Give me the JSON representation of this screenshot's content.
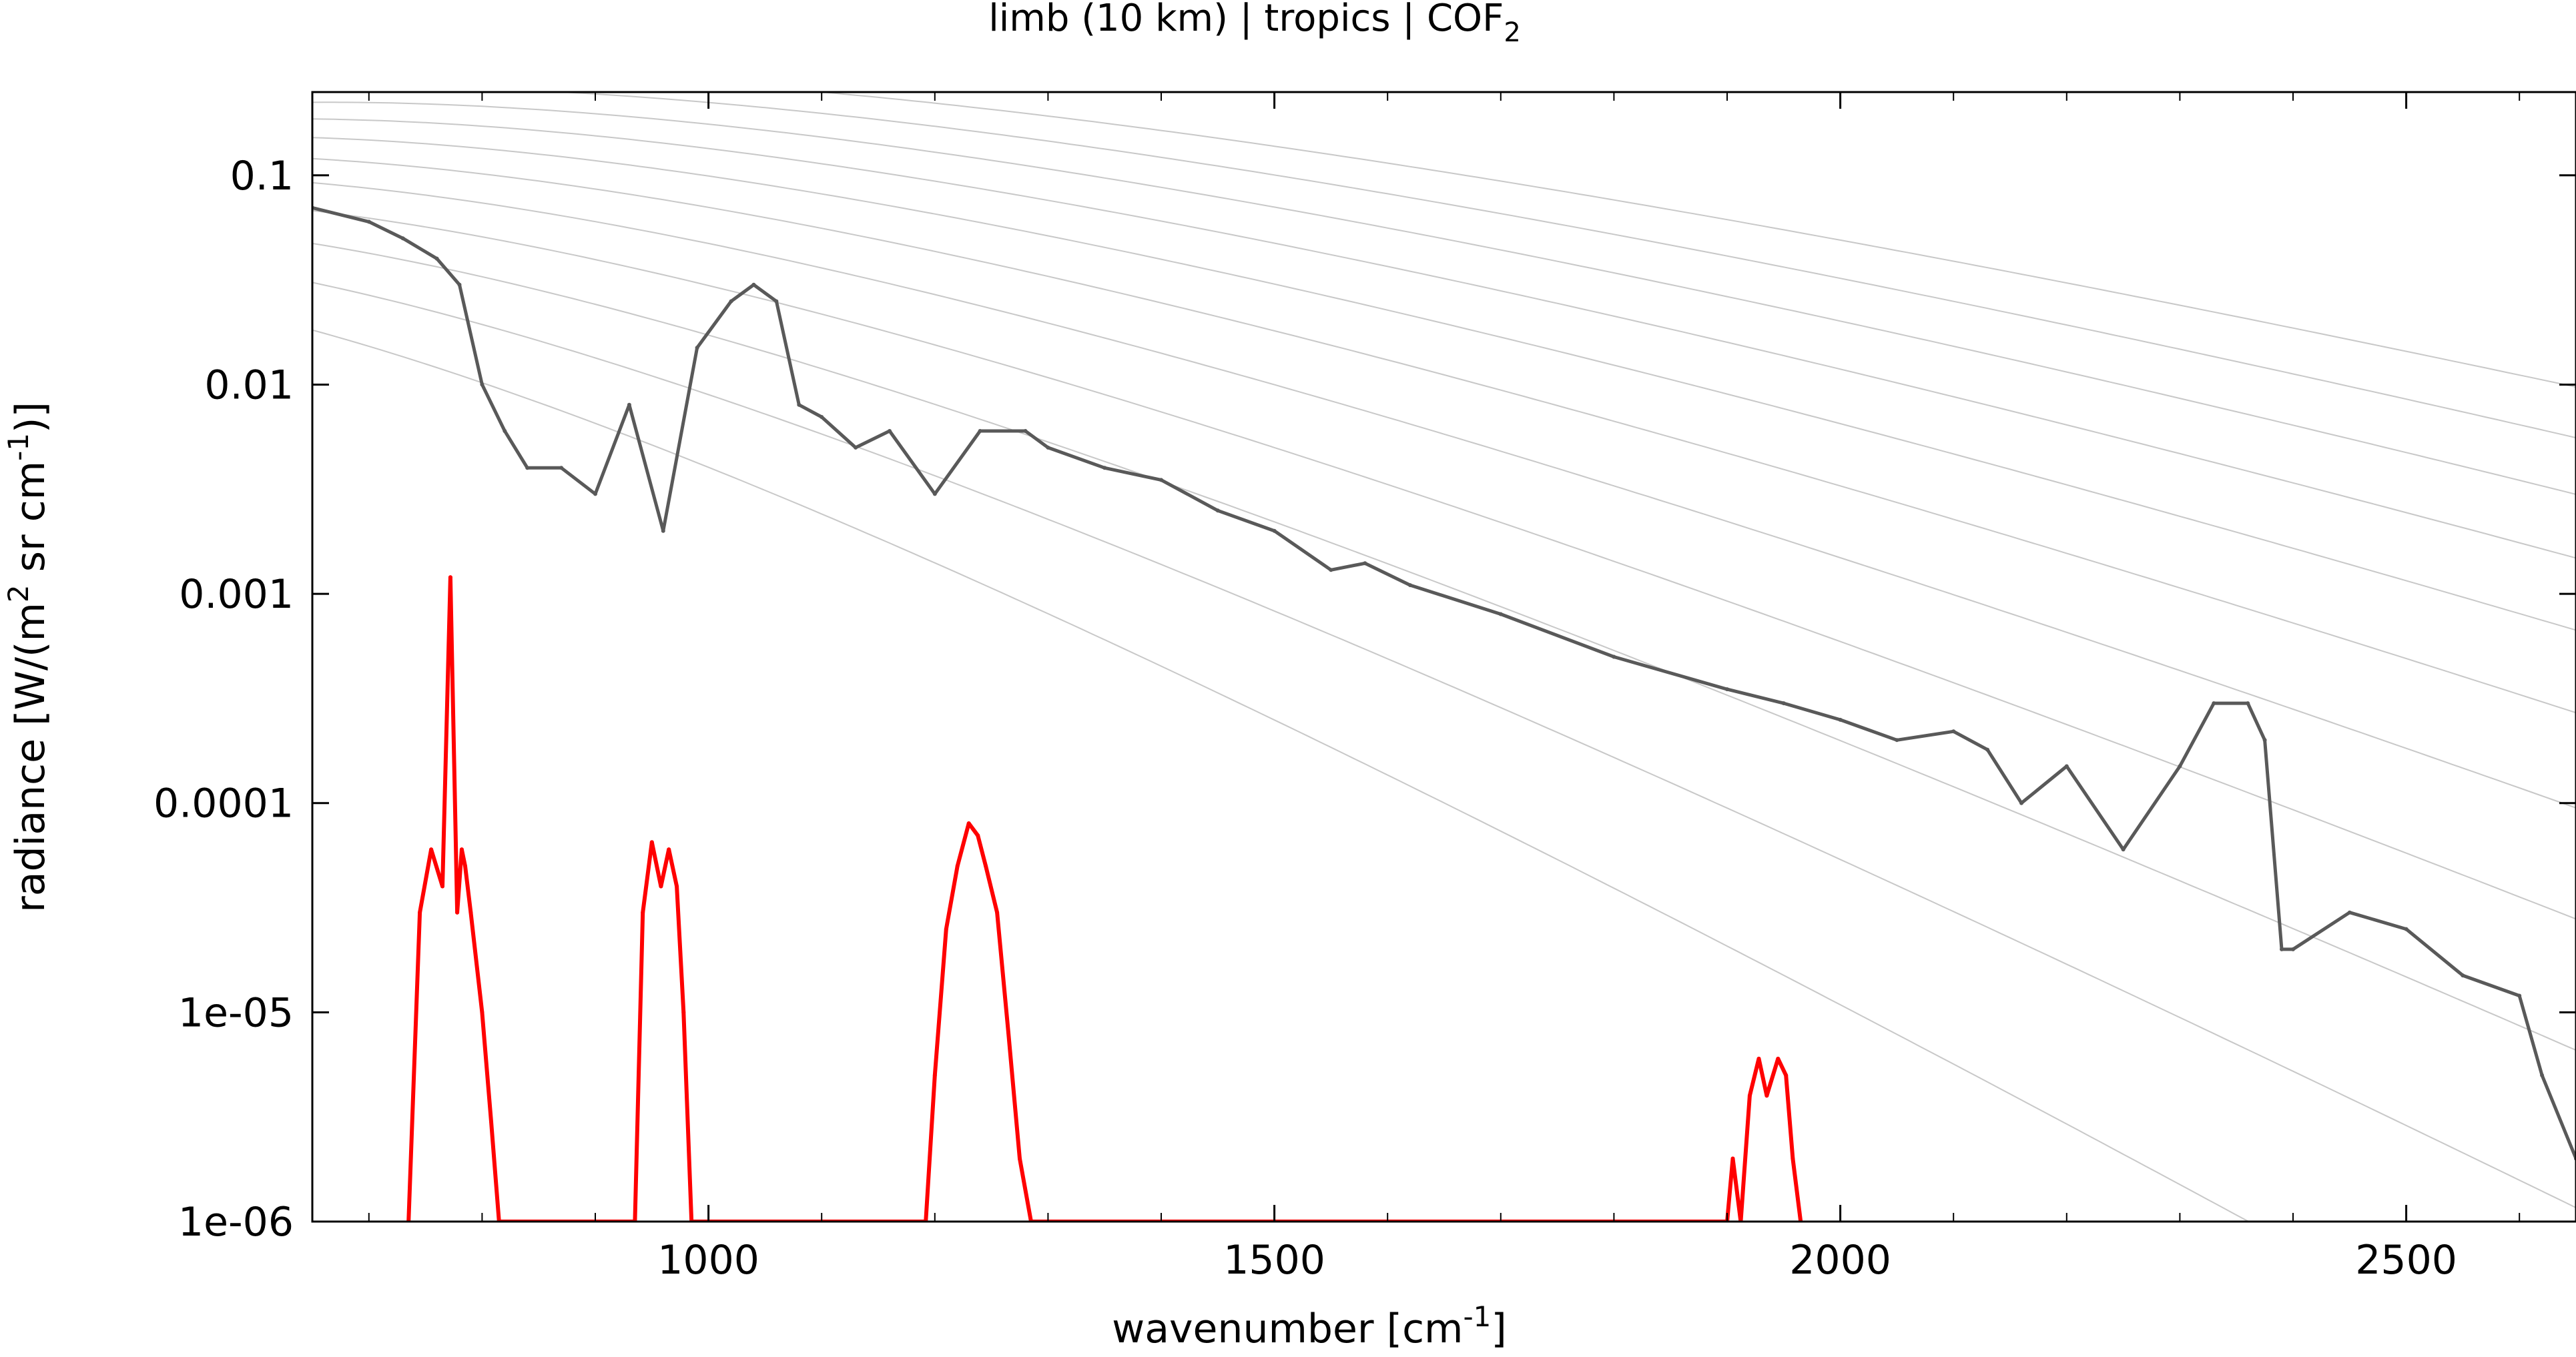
{
  "chart_data": {
    "type": "line",
    "title": "limb (10 km) | tropics | COF",
    "title_subscript": "2",
    "xlabel": "wavenumber [cm",
    "xlabel_sup": "-1",
    "xlabel_end": "]",
    "ylabel_a": "radiance [W/(m",
    "ylabel_sup1": "2",
    "ylabel_b": " sr cm",
    "ylabel_sup2": "-1",
    "ylabel_c": ")]",
    "xlim": [
      650,
      2650
    ],
    "ylim": [
      1e-06,
      0.25
    ],
    "yscale": "log",
    "grid": false,
    "x_ticks": [
      {
        "value": 1000,
        "label": "1000"
      },
      {
        "value": 1500,
        "label": "1500"
      },
      {
        "value": 2000,
        "label": "2000"
      },
      {
        "value": 2500,
        "label": "2500"
      }
    ],
    "y_ticks": [
      {
        "value": 0.1,
        "label": "0.1"
      },
      {
        "value": 0.01,
        "label": "0.01"
      },
      {
        "value": 0.001,
        "label": "0.001"
      },
      {
        "value": 0.0001,
        "label": "0.0001"
      },
      {
        "value": 1e-05,
        "label": "1e-05"
      },
      {
        "value": 1e-06,
        "label": "1e-06"
      }
    ],
    "colors": {
      "total_radiance": "#595959",
      "total_radiance_light": "#a6a6a6",
      "species_radiance": "#ff0000",
      "planck_reference": "#c8c8c8",
      "axis": "#000000"
    },
    "planck_reference_temperatures_K": [
      180,
      200,
      220,
      240,
      260,
      280,
      300,
      320,
      340,
      360,
      380
    ],
    "series": [
      {
        "role": "total",
        "x": [
          650,
          700,
          730,
          760,
          780,
          800,
          820,
          840,
          870,
          900,
          930,
          960,
          990,
          1020,
          1040,
          1060,
          1080,
          1100,
          1130,
          1160,
          1200,
          1240,
          1280,
          1300,
          1350,
          1400,
          1450,
          1500,
          1550,
          1580,
          1620,
          1700,
          1800,
          1900,
          1950,
          2000,
          2050,
          2100,
          2130,
          2160,
          2200,
          2250,
          2300,
          2330,
          2360,
          2375,
          2390,
          2400,
          2450,
          2500,
          2550,
          2600,
          2620,
          2650
        ],
        "y": [
          0.07,
          0.06,
          0.05,
          0.04,
          0.03,
          0.01,
          0.006,
          0.004,
          0.004,
          0.003,
          0.008,
          0.002,
          0.015,
          0.025,
          0.03,
          0.025,
          0.008,
          0.007,
          0.005,
          0.006,
          0.003,
          0.006,
          0.006,
          0.005,
          0.004,
          0.0035,
          0.0025,
          0.002,
          0.0013,
          0.0014,
          0.0011,
          0.0008,
          0.0005,
          0.00035,
          0.0003,
          0.00025,
          0.0002,
          0.00022,
          0.00018,
          0.0001,
          0.00015,
          6e-05,
          0.00015,
          0.0003,
          0.0003,
          0.0002,
          2e-05,
          2e-05,
          3e-05,
          2.5e-05,
          1.5e-05,
          1.2e-05,
          5e-06,
          2e-06
        ]
      },
      {
        "role": "COF2",
        "x": [
          735,
          745,
          755,
          765,
          772,
          778,
          782,
          785,
          790,
          800,
          808,
          815,
          935,
          942,
          950,
          958,
          965,
          972,
          978,
          985,
          1192,
          1200,
          1210,
          1220,
          1230,
          1238,
          1245,
          1255,
          1265,
          1275,
          1285,
          1900,
          1905,
          1912,
          1920,
          1928,
          1935,
          1945,
          1952,
          1958,
          1965
        ],
        "y": [
          1e-06,
          3e-05,
          6e-05,
          4e-05,
          0.0012,
          3e-05,
          6e-05,
          5e-05,
          3e-05,
          1e-05,
          3e-06,
          1e-06,
          1e-06,
          3e-05,
          6.5e-05,
          4e-05,
          6e-05,
          4e-05,
          1e-05,
          1e-06,
          1e-06,
          5e-06,
          2.5e-05,
          5e-05,
          8e-05,
          7e-05,
          5e-05,
          3e-05,
          8e-06,
          2e-06,
          1e-06,
          1e-06,
          2e-06,
          1e-06,
          4e-06,
          6e-06,
          4e-06,
          6e-06,
          5e-06,
          2e-06,
          1e-06
        ]
      }
    ]
  }
}
